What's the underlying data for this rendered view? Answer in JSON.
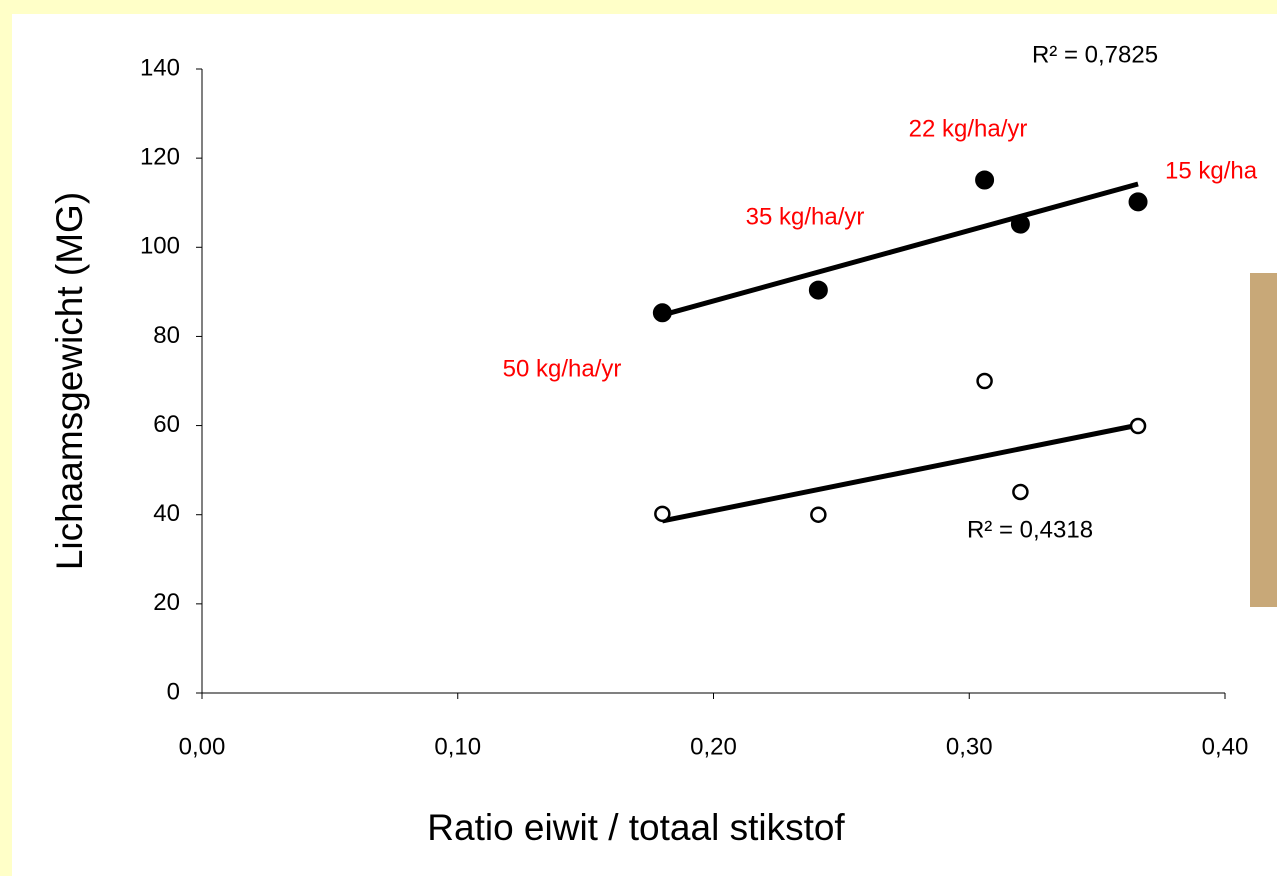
{
  "chart_data": {
    "type": "scatter",
    "xlabel": "Ratio eiwit / totaal stikstof",
    "ylabel": "Lichaamsgewicht (MG)",
    "xlim": [
      0,
      0.4
    ],
    "xticks": [
      {
        "value": 0,
        "label": "0,00"
      },
      {
        "value": 0.1,
        "label": "0,10"
      },
      {
        "value": 0.2,
        "label": "0,20"
      },
      {
        "value": 0.3,
        "label": "0,30"
      },
      {
        "value": 0.4,
        "label": "0,40"
      }
    ],
    "ylim": [
      0,
      140
    ],
    "yticks": [
      0,
      20,
      40,
      60,
      80,
      100,
      120,
      140
    ],
    "series": [
      {
        "marker": "filled",
        "color": "#000000",
        "x": [
          0.18,
          0.241,
          0.306,
          0.32,
          0.366
        ],
        "values": [
          85.3,
          90.4,
          115.1,
          105.2,
          110.2
        ]
      },
      {
        "marker": "open",
        "color": "#000000",
        "x": [
          0.18,
          0.241,
          0.306,
          0.32,
          0.366
        ],
        "values": [
          40.2,
          40,
          70,
          45.1,
          59.9
        ]
      }
    ],
    "trendlines": [
      {
        "x": [
          0.18,
          0.366
        ],
        "y": [
          84.8,
          114.2
        ],
        "label": "R² = 0,7825"
      },
      {
        "x": [
          0.18,
          0.366
        ],
        "y": [
          38.6,
          60.1
        ],
        "label": "R² = 0,4318"
      }
    ],
    "annotations": [
      "22 kg/ha/yr",
      "15 kg/ha",
      "35 kg/ha/yr",
      "50 kg/ha/yr"
    ],
    "annotation_color": "#ff0000"
  }
}
